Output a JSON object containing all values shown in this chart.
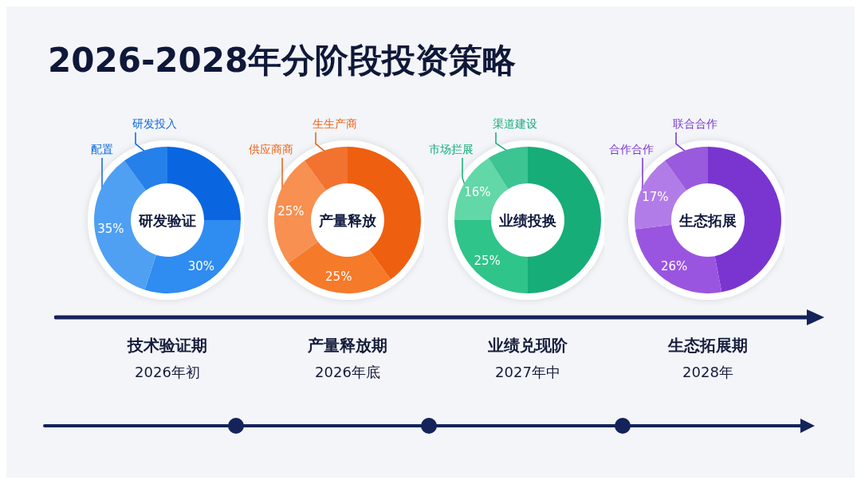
{
  "chart_data": [
    {
      "type": "donut",
      "title": "2026-2028年分阶段投资策略",
      "subtitle": "研发验证",
      "categories": [
        null,
        null,
        "配置",
        "研发投入"
      ],
      "values": [
        25,
        30,
        35,
        10
      ],
      "value_labels": [
        null,
        "30%",
        "35%",
        null
      ],
      "colors": [
        "#0a66e0",
        "#2f8cf0",
        "#4fa0f2",
        "#2680ea"
      ],
      "annotations": [
        "技术验证期",
        "2026年初"
      ]
    },
    {
      "type": "donut",
      "subtitle": "产量释放",
      "categories": [
        null,
        null,
        "供应商商",
        "生生产商"
      ],
      "values": [
        40,
        25,
        25,
        10
      ],
      "value_labels": [
        null,
        "25%",
        "25%",
        null
      ],
      "colors": [
        "#ee5f10",
        "#f57a2a",
        "#f79050",
        "#f27330"
      ],
      "annotations": [
        "产量释放期",
        "2026年底"
      ]
    },
    {
      "type": "donut",
      "subtitle": "业绩投换",
      "categories": [
        null,
        null,
        "市场拦展",
        "渠道建设"
      ],
      "values": [
        50,
        25,
        16,
        9
      ],
      "value_labels": [
        null,
        "25%",
        "16%",
        null
      ],
      "colors": [
        "#16ad78",
        "#2fc48a",
        "#62d7a7",
        "#3cc493"
      ],
      "annotations": [
        "业绩兑现阶",
        "2027年中"
      ]
    },
    {
      "type": "donut",
      "subtitle": "生态拓展",
      "categories": [
        null,
        null,
        "合作合作",
        "联合合作"
      ],
      "values": [
        47,
        26,
        17,
        10
      ],
      "value_labels": [
        null,
        "26%",
        "17%",
        null
      ],
      "colors": [
        "#7a35d0",
        "#9a55e0",
        "#b27ce8",
        "#9a5ade"
      ],
      "annotations": [
        "生态拓展期",
        "2028年"
      ]
    }
  ]
}
